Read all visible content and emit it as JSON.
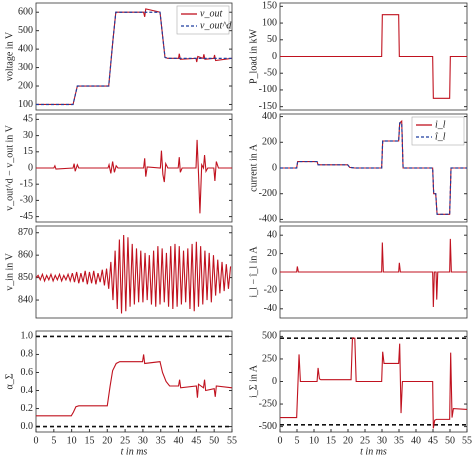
{
  "chart_data": [
    {
      "type": "line",
      "ylabel": "voltage in V",
      "xlim": [
        0,
        55
      ],
      "ylim": [
        70,
        650
      ],
      "yticks": [
        100,
        200,
        300,
        400,
        500,
        600
      ],
      "legend": "top-right",
      "x": [
        0,
        10.4,
        11.6,
        20.4,
        21.6,
        22.4,
        30.2,
        30.5,
        30.8,
        34.8,
        36.2,
        37,
        40,
        40.2,
        40.5,
        44.9,
        45.1,
        45.4,
        46.9,
        47.1,
        47.4,
        49.9,
        50.1,
        50.4,
        55
      ],
      "series": [
        {
          "name": "v_out",
          "color": "#c0121f",
          "dash": false,
          "values": [
            100,
            100,
            200,
            200,
            450,
            600,
            600,
            575,
            618,
            600,
            355,
            350,
            350,
            375,
            345,
            350,
            330,
            360,
            350,
            372,
            345,
            350,
            368,
            338,
            350
          ]
        },
        {
          "name": "v_out^d",
          "color": "#1f3f9f",
          "dash": true,
          "values": [
            100,
            100,
            200,
            200,
            450,
            600,
            600,
            600,
            600,
            600,
            355,
            350,
            350,
            350,
            350,
            350,
            350,
            350,
            350,
            350,
            350,
            350,
            350,
            350,
            350
          ]
        }
      ]
    },
    {
      "type": "line",
      "ylabel": "P_load in kW",
      "xlim": [
        0,
        55
      ],
      "ylim": [
        -160,
        160
      ],
      "yticks": [
        -150,
        -100,
        -50,
        0,
        50,
        100,
        150
      ],
      "x": [
        0,
        29.9,
        30.1,
        34.9,
        35.1,
        44.9,
        45.1,
        49.9,
        50.1,
        55
      ],
      "series": [
        {
          "color": "#c0121f",
          "dash": false,
          "values": [
            0,
            0,
            125,
            125,
            0,
            0,
            -125,
            -125,
            0,
            0
          ]
        }
      ]
    },
    {
      "type": "line",
      "ylabel": "v_out^d − v_out in V",
      "xlim": [
        0,
        55
      ],
      "ylim": [
        -50,
        50
      ],
      "yticks": [
        -45,
        -30,
        -15,
        0,
        15,
        30,
        45
      ],
      "x": [
        0,
        5,
        5.3,
        5.6,
        10.4,
        10.7,
        11,
        11.6,
        12,
        20.2,
        20.5,
        21,
        21.5,
        22,
        22.5,
        23,
        30.2,
        30.5,
        30.8,
        31.2,
        34.9,
        35.2,
        35.6,
        36,
        36.4,
        37,
        39.9,
        40.2,
        40.5,
        41,
        44.9,
        45.2,
        45.6,
        46,
        46.5,
        47,
        47.3,
        47.7,
        48.2,
        49.9,
        50.2,
        50.6,
        51.2,
        55
      ],
      "series": [
        {
          "color": "#c0121f",
          "dash": false,
          "values": [
            0,
            0,
            2,
            -1,
            0,
            4,
            -3,
            3,
            0,
            0,
            3,
            -5,
            6,
            -4,
            2,
            0,
            0,
            9,
            -8,
            1,
            0,
            16,
            -6,
            -13,
            4,
            0,
            0,
            10,
            -4,
            0,
            0,
            26,
            -5,
            -42,
            3,
            0,
            12,
            -3,
            0,
            0,
            -12,
            6,
            0,
            0
          ]
        }
      ]
    },
    {
      "type": "line",
      "ylabel": "current in A",
      "xlim": [
        0,
        55
      ],
      "ylim": [
        -420,
        420
      ],
      "yticks": [
        -400,
        -200,
        0,
        200,
        400
      ],
      "legend": "top-right",
      "x": [
        0,
        4.9,
        5.2,
        10.9,
        11.2,
        19.9,
        20.5,
        22,
        29.9,
        30.2,
        34.9,
        35.2,
        35.8,
        36.2,
        44.9,
        45.2,
        45.8,
        46.2,
        49.9,
        50.3,
        55
      ],
      "series": [
        {
          "name": "i_l",
          "color": "#c0121f",
          "dash": false,
          "values": [
            0,
            0,
            50,
            50,
            25,
            25,
            5,
            0,
            0,
            210,
            210,
            350,
            365,
            0,
            0,
            -200,
            -200,
            -360,
            -360,
            0,
            0
          ]
        },
        {
          "name": "î_l",
          "color": "#1f3f9f",
          "dash": true,
          "values": [
            0,
            0,
            50,
            50,
            25,
            25,
            5,
            0,
            0,
            210,
            210,
            350,
            350,
            0,
            0,
            -200,
            -200,
            -360,
            -360,
            0,
            0
          ]
        }
      ]
    },
    {
      "type": "line",
      "ylabel": "v_in in V",
      "xlim": [
        0,
        55
      ],
      "ylim": [
        832,
        873
      ],
      "yticks": [
        840,
        850,
        860,
        870
      ],
      "x": [
        0,
        0.6,
        1.2,
        1.8,
        2.4,
        3,
        3.6,
        4.2,
        4.8,
        5.4,
        6,
        6.6,
        7.2,
        7.8,
        8.4,
        9,
        9.6,
        10.2,
        10.8,
        11.4,
        12,
        12.6,
        13.2,
        13.8,
        14.4,
        15,
        15.6,
        16.2,
        16.8,
        17.4,
        18,
        18.6,
        19.2,
        19.8,
        20.4,
        21,
        21.6,
        22.2,
        22.8,
        23.4,
        24,
        24.6,
        25.2,
        25.8,
        26.4,
        27,
        27.6,
        28.2,
        28.8,
        29.4,
        30,
        30.6,
        31.2,
        31.8,
        32.4,
        33,
        33.6,
        34.2,
        34.8,
        35.4,
        36,
        36.6,
        37.2,
        37.8,
        38.4,
        39,
        39.6,
        40.2,
        40.8,
        41.4,
        42,
        42.6,
        43.2,
        43.8,
        44.4,
        45,
        45.6,
        46.2,
        46.8,
        47.4,
        48,
        48.6,
        49.2,
        49.8,
        50.4,
        51,
        51.6,
        52.2,
        52.8,
        53.4,
        54,
        54.6
      ],
      "series": [
        {
          "color": "#c0121f",
          "dash": false,
          "values": [
            850,
            851,
            849,
            851.5,
            848.5,
            851,
            849,
            851.5,
            848.5,
            851,
            849,
            851.5,
            848.5,
            851,
            849,
            851.5,
            848.5,
            852,
            848,
            852.5,
            847.5,
            852,
            848,
            853,
            847,
            852.5,
            847.5,
            853,
            847,
            852,
            848,
            853.5,
            846.5,
            854,
            845,
            857,
            840,
            862,
            836,
            867,
            834,
            869,
            835,
            868,
            837,
            865,
            838,
            863,
            839,
            862,
            839,
            861,
            840,
            860,
            838,
            862,
            837,
            864,
            838,
            863,
            839,
            861,
            837,
            864,
            836,
            865,
            837,
            864,
            838,
            862,
            839,
            863,
            836,
            865,
            835,
            866,
            837,
            864,
            838,
            862,
            840,
            861,
            839,
            860,
            842,
            858,
            843,
            857,
            844,
            856,
            845,
            855
          ]
        }
      ]
    },
    {
      "type": "line",
      "ylabel": "i_l − î_l in A",
      "xlim": [
        0,
        55
      ],
      "ylim": [
        -50,
        50
      ],
      "yticks": [
        -40,
        -20,
        0,
        20,
        40
      ],
      "x": [
        0,
        4.9,
        5.1,
        5.4,
        29.9,
        30.1,
        30.4,
        34.9,
        35.1,
        35.4,
        44.9,
        45.1,
        45.4,
        45.9,
        46.1,
        46.4,
        49.9,
        50.1,
        50.4,
        55
      ],
      "series": [
        {
          "color": "#c0121f",
          "dash": false,
          "values": [
            0,
            0,
            6,
            0,
            0,
            32,
            0,
            0,
            10,
            0,
            0,
            -38,
            0,
            0,
            -30,
            0,
            0,
            36,
            0,
            0
          ]
        }
      ]
    },
    {
      "type": "line",
      "ylabel": "α_Σ",
      "xlabel": "t in ms",
      "xlim": [
        0,
        55
      ],
      "ylim": [
        -0.06,
        1.06
      ],
      "xticks": [
        0,
        5,
        10,
        15,
        20,
        25,
        30,
        35,
        40,
        45,
        50,
        55
      ],
      "yticks": [
        {
          "value": 0,
          "label": "0.0"
        },
        0.2,
        0.4,
        0.6,
        0.8,
        {
          "value": 1,
          "label": "1.0"
        }
      ],
      "hlines": [
        0,
        1
      ],
      "x": [
        0,
        9.9,
        10.5,
        11.2,
        12,
        20,
        20.8,
        21.5,
        22.5,
        23.5,
        29.9,
        30.2,
        30.5,
        34.8,
        35.5,
        36.5,
        37.5,
        40,
        40.3,
        40.6,
        45,
        45.3,
        45.6,
        47,
        47.3,
        47.6,
        50,
        50.3,
        50.6,
        55
      ],
      "series": [
        {
          "color": "#c0121f",
          "dash": false,
          "values": [
            0.12,
            0.12,
            0.16,
            0.22,
            0.23,
            0.23,
            0.45,
            0.62,
            0.7,
            0.72,
            0.72,
            0.8,
            0.7,
            0.72,
            0.6,
            0.5,
            0.45,
            0.45,
            0.52,
            0.43,
            0.45,
            0.32,
            0.47,
            0.43,
            0.52,
            0.4,
            0.42,
            0.33,
            0.45,
            0.43
          ]
        }
      ]
    },
    {
      "type": "line",
      "ylabel": "i_Σ in A",
      "xlabel": "t in ms",
      "xlim": [
        0,
        55
      ],
      "ylim": [
        -560,
        560
      ],
      "xticks": [
        0,
        5,
        10,
        15,
        20,
        25,
        30,
        35,
        40,
        45,
        50,
        55
      ],
      "yticks": [
        -500,
        -250,
        0,
        250,
        500
      ],
      "hlines": [
        -480,
        480
      ],
      "x": [
        0,
        4.9,
        5.2,
        5.6,
        6,
        10.9,
        11.2,
        11.6,
        12,
        20.9,
        21.3,
        22,
        22.4,
        29.9,
        30.2,
        30.6,
        31,
        34.9,
        35.2,
        35.6,
        36,
        44.9,
        45.1,
        45.5,
        46,
        49.9,
        50.2,
        50.6,
        51,
        55
      ],
      "series": [
        {
          "color": "#c0121f",
          "dash": false,
          "values": [
            -400,
            -400,
            -100,
            300,
            0,
            0,
            150,
            30,
            20,
            20,
            480,
            480,
            0,
            0,
            330,
            200,
            200,
            200,
            420,
            -350,
            0,
            0,
            -520,
            -430,
            -420,
            -420,
            320,
            -400,
            -300,
            -310
          ]
        }
      ]
    }
  ]
}
